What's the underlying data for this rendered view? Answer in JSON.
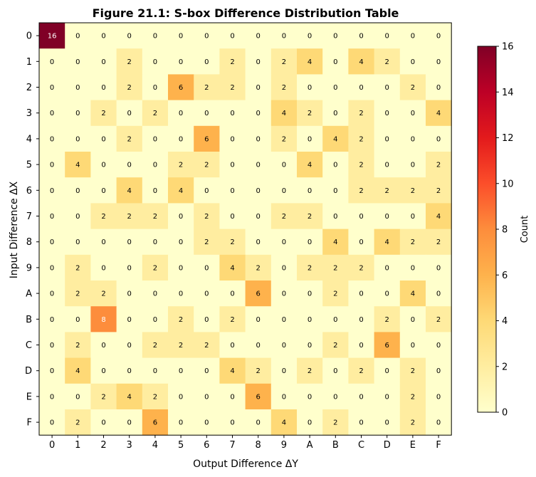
{
  "chart_data": {
    "type": "heatmap",
    "title": "Figure 21.1: S-box Difference Distribution Table",
    "xlabel": "Output Difference ΔY",
    "ylabel": "Input Difference ΔX",
    "x_categories": [
      "0",
      "1",
      "2",
      "3",
      "4",
      "5",
      "6",
      "7",
      "8",
      "9",
      "A",
      "B",
      "C",
      "D",
      "E",
      "F"
    ],
    "y_categories": [
      "0",
      "1",
      "2",
      "3",
      "4",
      "5",
      "6",
      "7",
      "8",
      "9",
      "A",
      "B",
      "C",
      "D",
      "E",
      "F"
    ],
    "values": [
      [
        16,
        0,
        0,
        0,
        0,
        0,
        0,
        0,
        0,
        0,
        0,
        0,
        0,
        0,
        0,
        0
      ],
      [
        0,
        0,
        0,
        2,
        0,
        0,
        0,
        2,
        0,
        2,
        4,
        0,
        4,
        2,
        0,
        0
      ],
      [
        0,
        0,
        0,
        2,
        0,
        6,
        2,
        2,
        0,
        2,
        0,
        0,
        0,
        0,
        2,
        0
      ],
      [
        0,
        0,
        2,
        0,
        2,
        0,
        0,
        0,
        0,
        4,
        2,
        0,
        2,
        0,
        0,
        4
      ],
      [
        0,
        0,
        0,
        2,
        0,
        0,
        6,
        0,
        0,
        2,
        0,
        4,
        2,
        0,
        0,
        0
      ],
      [
        0,
        4,
        0,
        0,
        0,
        2,
        2,
        0,
        0,
        0,
        4,
        0,
        2,
        0,
        0,
        2
      ],
      [
        0,
        0,
        0,
        4,
        0,
        4,
        0,
        0,
        0,
        0,
        0,
        0,
        2,
        2,
        2,
        2
      ],
      [
        0,
        0,
        2,
        2,
        2,
        0,
        2,
        0,
        0,
        2,
        2,
        0,
        0,
        0,
        0,
        4
      ],
      [
        0,
        0,
        0,
        0,
        0,
        0,
        2,
        2,
        0,
        0,
        0,
        4,
        0,
        4,
        2,
        2
      ],
      [
        0,
        2,
        0,
        0,
        2,
        0,
        0,
        4,
        2,
        0,
        2,
        2,
        2,
        0,
        0,
        0
      ],
      [
        0,
        2,
        2,
        0,
        0,
        0,
        0,
        0,
        6,
        0,
        0,
        2,
        0,
        0,
        4,
        0
      ],
      [
        0,
        0,
        8,
        0,
        0,
        2,
        0,
        2,
        0,
        0,
        0,
        0,
        0,
        2,
        0,
        2
      ],
      [
        0,
        2,
        0,
        0,
        2,
        2,
        2,
        0,
        0,
        0,
        0,
        2,
        0,
        6,
        0,
        0
      ],
      [
        0,
        4,
        0,
        0,
        0,
        0,
        0,
        4,
        2,
        0,
        2,
        0,
        2,
        0,
        2,
        0
      ],
      [
        0,
        0,
        2,
        4,
        2,
        0,
        0,
        0,
        6,
        0,
        0,
        0,
        0,
        0,
        2,
        0
      ],
      [
        0,
        2,
        0,
        0,
        6,
        0,
        0,
        0,
        0,
        4,
        0,
        2,
        0,
        0,
        2,
        0
      ]
    ],
    "colorbar": {
      "label": "Count",
      "range": [
        0,
        16
      ],
      "ticks": [
        "0",
        "2",
        "4",
        "6",
        "8",
        "10",
        "12",
        "14",
        "16"
      ]
    },
    "colormap": "YlOrRd",
    "grid": false
  }
}
